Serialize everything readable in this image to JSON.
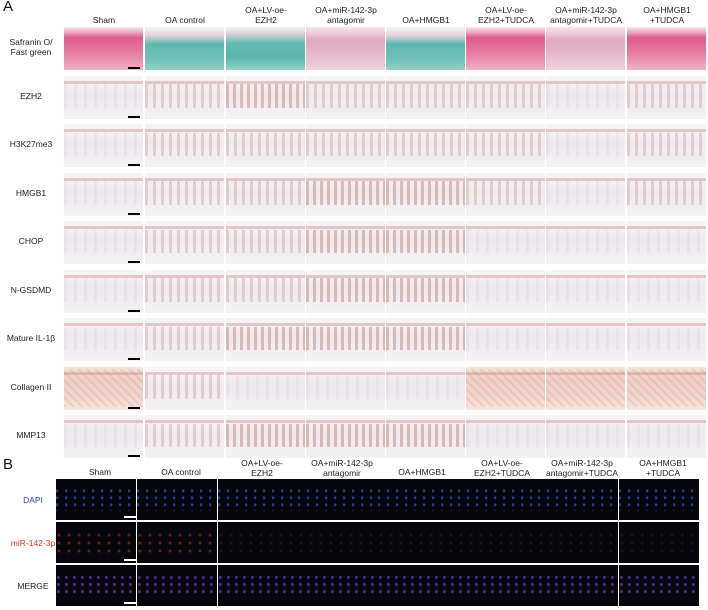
{
  "panel_a": {
    "letter": "A",
    "columns": [
      "Sham",
      "OA control",
      "OA+LV-oe-\nEZH2",
      "OA+miR-142-3p\nantagomir",
      "OA+HMGB1",
      "OA+LV-oe-\nEZH2+TUDCA",
      "OA+miR-142-3p\nantagomir+TUDCA",
      "OA+HMGB1\n+TUDCA"
    ],
    "rows": [
      {
        "label": "Safranin O/\nFast green",
        "styles": [
          "safranin-red",
          "safranin-teal",
          "safranin-teal2",
          "safranin-pink",
          "safranin-teal",
          "safranin-red",
          "safranin-pink",
          "safranin-red"
        ]
      },
      {
        "label": "EZH2",
        "styles": [
          "stain-weak",
          "stain-med",
          "stain-strong",
          "stain-med",
          "stain-med",
          "stain-med",
          "stain-weak",
          "stain-med"
        ]
      },
      {
        "label": "H3K27me3",
        "styles": [
          "stain-weak",
          "stain-med",
          "stain-med",
          "stain-med",
          "stain-med",
          "stain-med",
          "stain-weak",
          "stain-med"
        ]
      },
      {
        "label": "HMGB1",
        "styles": [
          "stain-weak",
          "stain-med",
          "stain-med",
          "stain-strong",
          "stain-strong",
          "stain-med",
          "stain-weak",
          "stain-med"
        ]
      },
      {
        "label": "CHOP",
        "styles": [
          "stain-weak",
          "stain-med",
          "stain-med",
          "stain-strong",
          "stain-strong",
          "stain-weak",
          "stain-weak",
          "stain-weak"
        ]
      },
      {
        "label": "N-GSDMD",
        "styles": [
          "stain-weak",
          "stain-med",
          "stain-med",
          "stain-strong",
          "stain-strong",
          "stain-weak",
          "stain-weak",
          "stain-weak"
        ]
      },
      {
        "label": "Mature IL-1β",
        "styles": [
          "stain-weak",
          "stain-med",
          "stain-strong",
          "stain-strong",
          "stain-strong",
          "stain-weak",
          "stain-weak",
          "stain-weak"
        ]
      },
      {
        "label": "Collagen II",
        "styles": [
          "collagen-strong",
          "stain-med",
          "stain-weak",
          "stain-weak",
          "stain-weak",
          "collagen-strong",
          "collagen-strong",
          "collagen-strong"
        ]
      },
      {
        "label": "MMP13",
        "styles": [
          "stain-weak",
          "stain-med",
          "stain-strong",
          "stain-strong",
          "stain-strong",
          "stain-weak",
          "stain-weak",
          "stain-weak"
        ]
      }
    ]
  },
  "panel_b": {
    "letter": "B",
    "columns": [
      "Sham",
      "OA control",
      "OA+LV-oe-\nEZH2",
      "OA+miR-142-3p\nantagomir",
      "OA+HMGB1",
      "OA+LV-oe-\nEZH2+TUDCA",
      "OA+miR-142-3p\nantagomir+TUDCA",
      "OA+HMGB1\n+TUDCA"
    ],
    "rows": [
      {
        "label": "DAPI",
        "color": "#2b3fd6",
        "channel": "blue"
      },
      {
        "label": "miR-142-3p",
        "color": "#e0341e",
        "channel": "red"
      },
      {
        "label": "MERGE",
        "color": "#222222",
        "channel": "merge"
      }
    ]
  }
}
